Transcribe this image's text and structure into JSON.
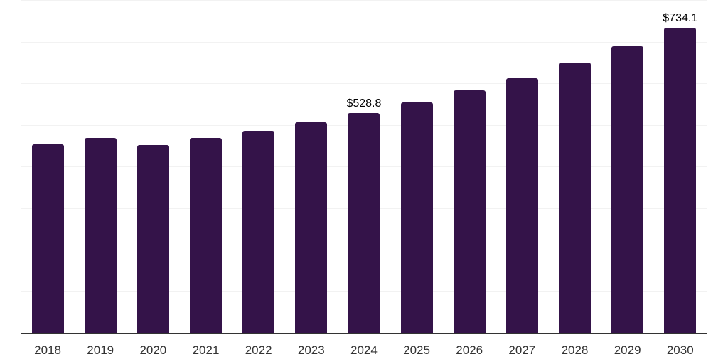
{
  "chart": {
    "background_color": "#ffffff",
    "bar_color": "#341349",
    "axis_line_color": "#333333",
    "gridline_color": "#f2f2f2",
    "tick_label_color": "#333333",
    "value_label_color": "#000000"
  },
  "chart_data": {
    "type": "bar",
    "title": "",
    "xlabel": "",
    "ylabel": "",
    "categories": [
      "2018",
      "2019",
      "2020",
      "2021",
      "2022",
      "2023",
      "2024",
      "2025",
      "2026",
      "2027",
      "2028",
      "2029",
      "2030"
    ],
    "values": [
      452.6,
      468.5,
      451.1,
      468.0,
      486.0,
      506.7,
      528.8,
      553.7,
      582.6,
      612.8,
      649.7,
      688.2,
      734.1
    ],
    "data_labels": {
      "2024": "$528.8",
      "2030": "$734.1"
    },
    "ylim": [
      0,
      800
    ],
    "gridline_interval": 100,
    "gridlines_visible": true,
    "y_axis_ticks_visible": false,
    "legend_position": "none"
  }
}
